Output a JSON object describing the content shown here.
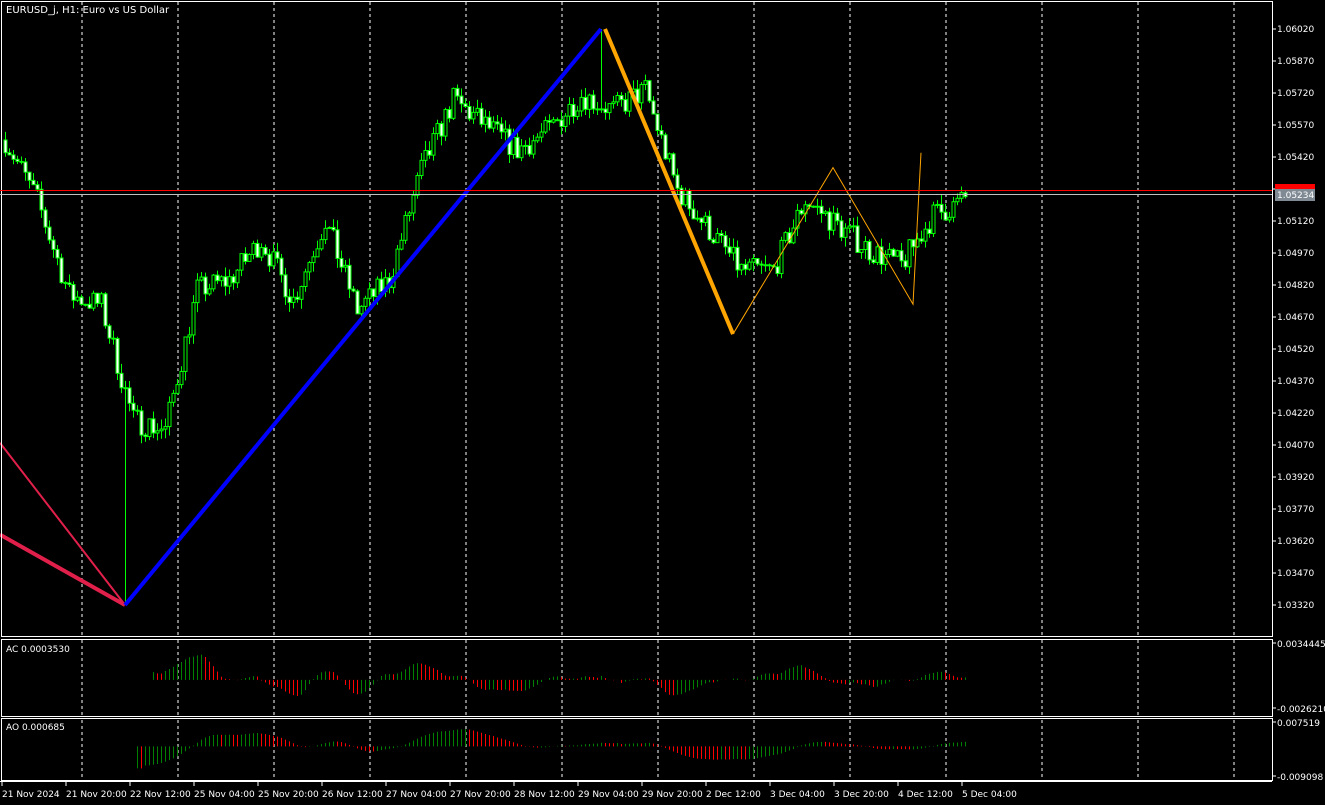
{
  "chart_data": {
    "type": "candlestick",
    "title": "EURUSD_j, H1:  Euro vs US Dollar",
    "symbol": "EURUSD_j",
    "timeframe": "H1",
    "description": "Euro vs US Dollar",
    "bid_price": "1.05234",
    "price_axis_labels": [
      "1.06020",
      "1.05870",
      "1.05720",
      "1.05570",
      "1.05420",
      "1.05270",
      "1.05120",
      "1.04970",
      "1.04820",
      "1.04670",
      "1.04520",
      "1.04370",
      "1.04220",
      "1.04070",
      "1.03920",
      "1.03770",
      "1.03620",
      "1.03470",
      "1.03320"
    ],
    "ylim": [
      1.0332,
      1.0602
    ],
    "time_axis_labels": [
      "21 Nov 2024",
      "21 Nov 20:00",
      "22 Nov 12:00",
      "25 Nov 04:00",
      "25 Nov 20:00",
      "26 Nov 12:00",
      "27 Nov 04:00",
      "27 Nov 20:00",
      "28 Nov 12:00",
      "29 Nov 04:00",
      "29 Nov 20:00",
      "2 Dec 12:00",
      "3 Dec 04:00",
      "3 Dec 20:00",
      "4 Dec 12:00",
      "5 Dec 04:00"
    ],
    "approx_closes_every_8_bars": [
      1.055,
      1.05218,
      1.04773,
      1.04726,
      1.04187,
      1.0414,
      1.04797,
      1.04843,
      1.05031,
      1.0475,
      1.05125,
      1.04703,
      1.04843,
      1.05359,
      1.05687,
      1.0557,
      1.05453,
      1.05547,
      1.05711,
      1.0564,
      1.05734,
      1.05265,
      1.05078,
      1.0489,
      1.0489,
      1.05218,
      1.05101,
      1.04984,
      1.04914,
      1.05148,
      1.05218
    ],
    "zigzag": {
      "red_thin": [
        1.0408,
        1.0332
      ],
      "red_thick": [
        1.0365,
        1.0332
      ],
      "blue": [
        1.0332,
        1.0602
      ],
      "orange_thick": [
        1.0602,
        1.0459
      ],
      "orange_thin": [
        1.0459,
        1.0537,
        1.0473,
        1.0544
      ]
    },
    "indicators": [
      {
        "name": "AC",
        "label": "AC 0.0003530",
        "max_label": "0.0034445",
        "min_label": "-0.0026210",
        "ylim": [
          -0.002621,
          0.0034445
        ]
      },
      {
        "name": "AO",
        "label": "AO 0.000685",
        "max_label": "0.007519",
        "min_label": "-0.009098",
        "ylim": [
          -0.009098,
          0.007519
        ]
      }
    ],
    "grid": true,
    "colors": {
      "background": "#000000",
      "candle": "#00ff00",
      "bear_body": "#ffffff",
      "bull_body": "#000000",
      "up_bar": "#008000",
      "down_bar": "#ff0000",
      "bid_line": "#c0c0c0",
      "ask_line": "#ff0000",
      "zigzag_red": "#e0204a",
      "zigzag_blue": "#0000ff",
      "zigzag_orange": "#ffa500"
    }
  }
}
